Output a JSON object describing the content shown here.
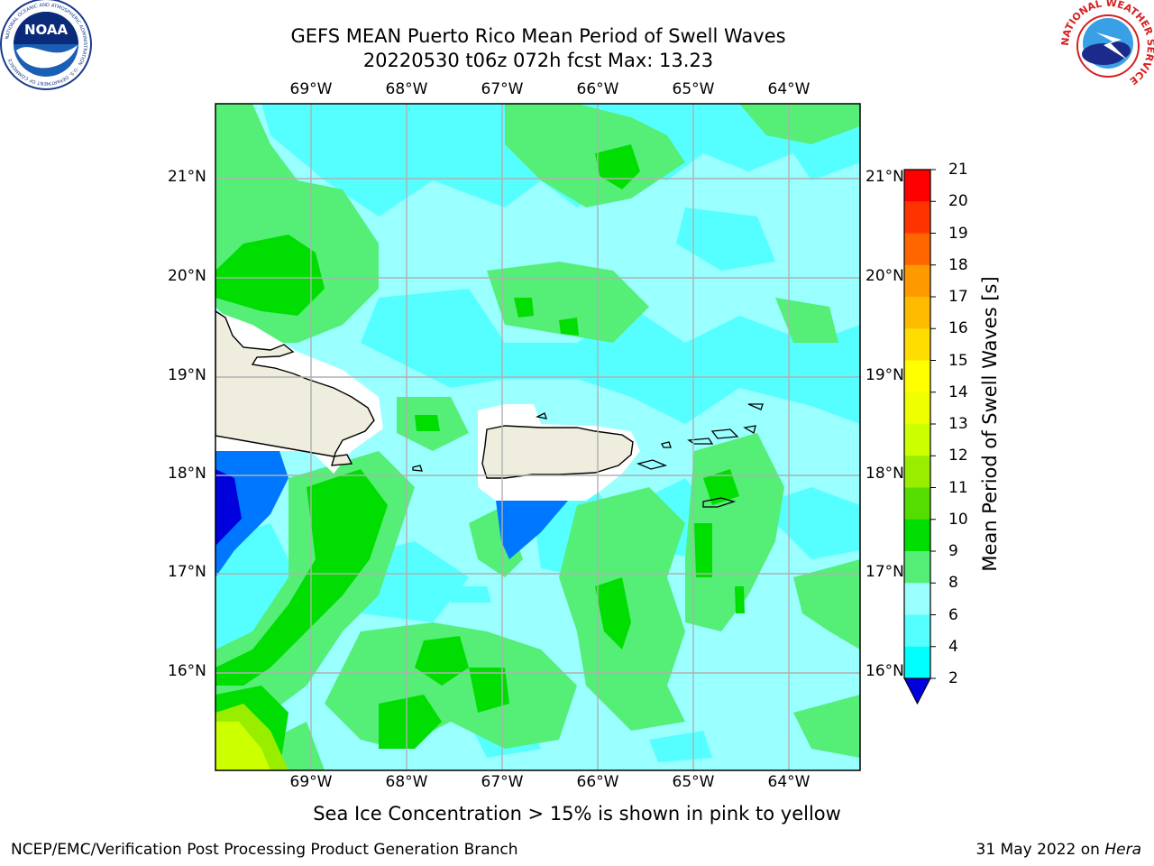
{
  "header": {
    "title_line1": "GEFS MEAN Puerto Rico Mean Period of Swell Waves",
    "title_line2": "20220530 t06z 072h fcst   Max: 13.23"
  },
  "logos": {
    "left": {
      "icon": "noaa-logo-icon",
      "text": "NOAA",
      "ring_text": "NATIONAL OCEANIC AND ATMOSPHERIC ADMINISTRATION · U.S. DEPARTMENT OF COMMERCE"
    },
    "right": {
      "icon": "nws-logo-icon",
      "ring_text": "NATIONAL WEATHER SERVICE"
    }
  },
  "map": {
    "lon_labels": [
      "69°W",
      "68°W",
      "67°W",
      "66°W",
      "65°W",
      "64°W"
    ],
    "lat_labels": [
      "21°N",
      "20°N",
      "19°N",
      "18°N",
      "17°N",
      "16°N"
    ],
    "land_color": "#efedde",
    "coast_color": "#000000"
  },
  "colorbar": {
    "label": "Mean Period of Swell Waves [s]",
    "ticks": [
      "21",
      "20",
      "19",
      "18",
      "17",
      "16",
      "15",
      "14",
      "13",
      "12",
      "11",
      "10",
      "9",
      "8",
      "6",
      "4",
      "2"
    ],
    "colors": [
      "#ff0000",
      "#ff3300",
      "#ff6600",
      "#ff9900",
      "#ffbb00",
      "#ffdd00",
      "#ffff00",
      "#eeff00",
      "#ccff00",
      "#99ee00",
      "#55dd00",
      "#00dd00",
      "#55ee77",
      "#99ffff",
      "#55ffff",
      "#00ffff",
      "#0077ff",
      "#0000dd"
    ]
  },
  "caption": "Sea Ice Concentration > 15% is shown in pink to yellow",
  "footer": {
    "left": "NCEP/EMC/Verification Post Processing Product Generation Branch",
    "right_prefix": "31 May 2022 on ",
    "right_host": "Hera"
  }
}
